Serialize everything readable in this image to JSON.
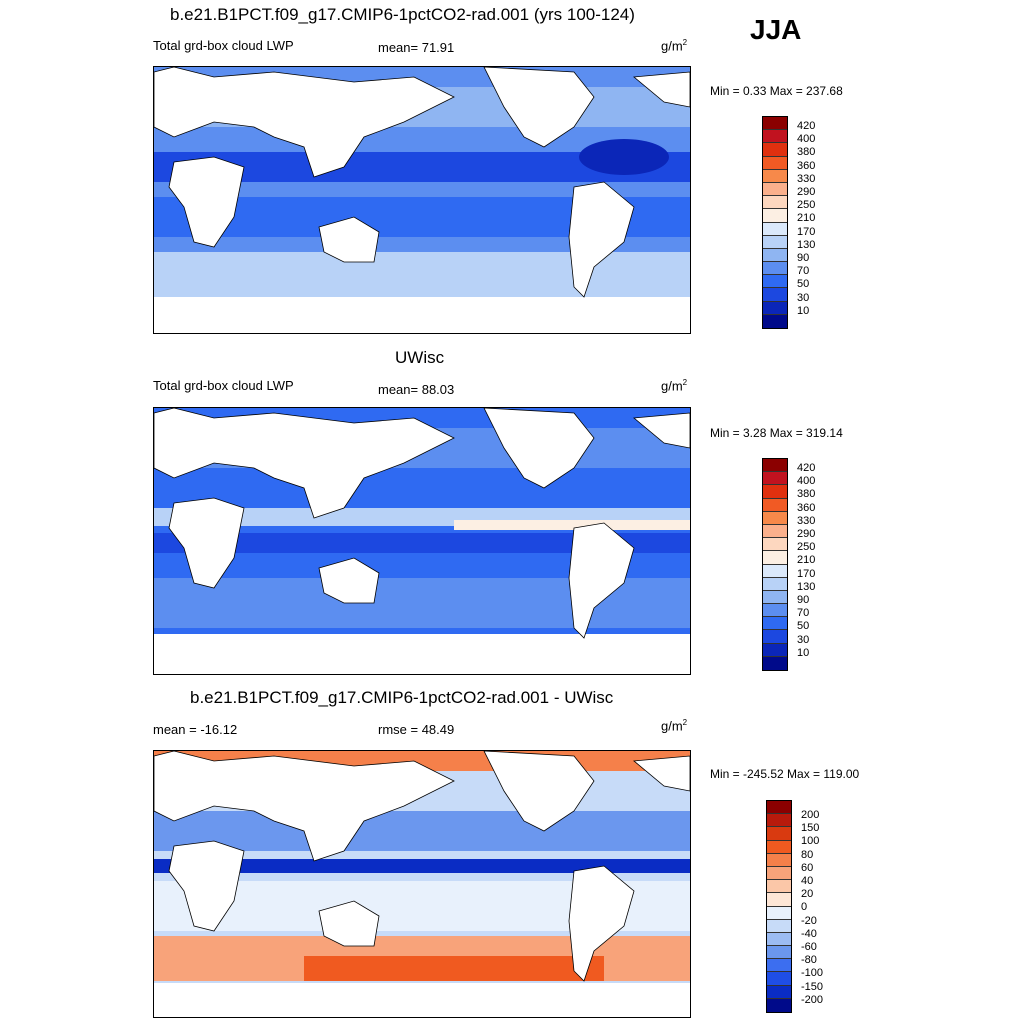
{
  "season": "JJA",
  "panels": [
    {
      "title": "b.e21.B1PCT.f09_g17.CMIP6-1pctCO2-rad.001 (yrs 100-124)",
      "left_label": "Total grd-box cloud LWP",
      "center_label": "mean=  71.91",
      "units": "g/m",
      "units_exp": "2",
      "minmax": "Min =   0.33 Max = 237.68",
      "colorbar": {
        "levels": [
          "420",
          "400",
          "380",
          "360",
          "330",
          "290",
          "250",
          "210",
          "170",
          "130",
          "90",
          "70",
          "50",
          "30",
          "10"
        ],
        "colors": [
          "#8b0000",
          "#c1121f",
          "#e0300f",
          "#f15a24",
          "#f7894a",
          "#fbb08c",
          "#fdd7bf",
          "#fcefe3",
          "#dbe9fb",
          "#b8d2f7",
          "#8fb5f2",
          "#5c8ef0",
          "#2f6af2",
          "#1c48e0",
          "#0b26b8",
          "#000a8a"
        ]
      }
    },
    {
      "title": "UWisc",
      "left_label": "Total grd-box cloud LWP",
      "center_label": "mean=  88.03",
      "units": "g/m",
      "units_exp": "2",
      "minmax": "Min =   3.28 Max = 319.14",
      "colorbar": {
        "levels": [
          "420",
          "400",
          "380",
          "360",
          "330",
          "290",
          "250",
          "210",
          "170",
          "130",
          "90",
          "70",
          "50",
          "30",
          "10"
        ],
        "colors": [
          "#8b0000",
          "#c1121f",
          "#e0300f",
          "#f15a24",
          "#f7894a",
          "#fbb08c",
          "#fdd7bf",
          "#fcefe3",
          "#dbe9fb",
          "#b8d2f7",
          "#8fb5f2",
          "#5c8ef0",
          "#2f6af2",
          "#1c48e0",
          "#0b26b8",
          "#000a8a"
        ]
      }
    },
    {
      "title": "b.e21.B1PCT.f09_g17.CMIP6-1pctCO2-rad.001 - UWisc",
      "left_label": "mean = -16.12",
      "center_label": "rmse =  48.49",
      "units": "g/m",
      "units_exp": "2",
      "minmax": "Min = -245.52 Max = 119.00",
      "colorbar": {
        "levels": [
          "200",
          "150",
          "100",
          "80",
          "60",
          "40",
          "20",
          "0",
          "-20",
          "-40",
          "-60",
          "-80",
          "-100",
          "-150",
          "-200"
        ],
        "colors": [
          "#8b0000",
          "#b81a0c",
          "#d93a10",
          "#f05a20",
          "#f5804a",
          "#f8a37a",
          "#fbc7a8",
          "#fde6d6",
          "#e8f1fc",
          "#c7dbf8",
          "#9cbcf3",
          "#6b97ee",
          "#3c6ef0",
          "#1f4ee6",
          "#0a2cc4",
          "#000a8a"
        ]
      }
    }
  ]
}
